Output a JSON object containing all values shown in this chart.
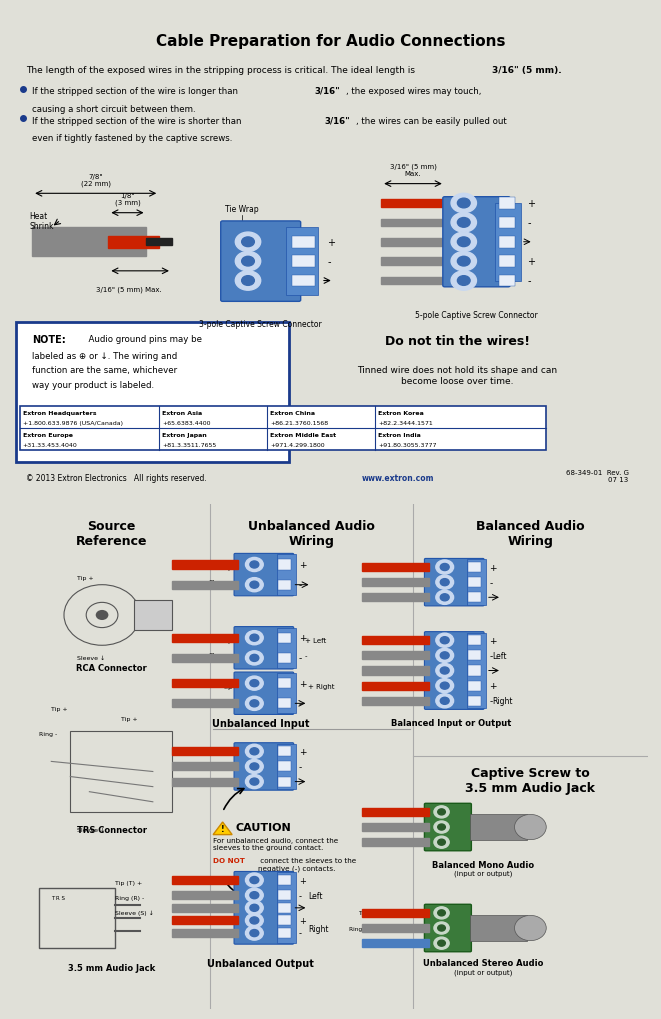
{
  "bg_color": "#f5f5f0",
  "top_panel_bg": "#ffffff",
  "bottom_panel_bg": "#ffffff",
  "border_color": "#333333",
  "blue_connector": "#4a7dbf",
  "dark_blue": "#1a3a6b",
  "red_wire": "#cc0000",
  "gray_wire": "#888888",
  "title_top": "Cable Preparation for Audio Connections",
  "body_text1": "The length of the exposed wires in the stripping process is critical. The ideal length is 3/16\" (5 mm).",
  "bullet1": "If the stripped section of the wire is longer than 3/16\", the exposed wires may touch,\ncausing a short circuit between them.",
  "bullet2": "If the stripped section of the wire is shorter than 3/16\", the wires can be easily pulled out\neven if tightly fastened by the captive screws.",
  "note_text": "NOTE:   Audio ground pins may be\nlabeled as ⊕ or ↓. The wiring and\nfunction are the same, whichever\nway your product is labeled.",
  "do_not_tin": "Do not tin the wires!",
  "tin_sub": "Tinned wire does not hold its shape and can\nbecome loose over time.",
  "footer_cells": [
    [
      "Extron Headquarters\n+1.800.633.9876 (USA/Canada)",
      "Extron Asia\n+65.6383.4400",
      "Extron China\n+86.21.3760.1568",
      "Extron Korea\n+82.2.3444.1571"
    ],
    [
      "Extron Europe\n+31.33.453.4040",
      "Extron Japan\n+81.3.3511.7655",
      "Extron Middle East\n+971.4.299.1800",
      "Extron India\n+91.80.3055.3777"
    ]
  ],
  "copyright": "© 2013 Extron Electronics   All rights reserved.   www.extron.com",
  "ref_num": "68-349-01  Rev. G\n07 13",
  "src_ref_title": "Source\nReference",
  "unbal_title": "Unbalanced Audio\nWiring",
  "bal_title": "Balanced Audio\nWiring",
  "capt_screw_title": "Captive Screw to\n3.5 mm Audio Jack"
}
